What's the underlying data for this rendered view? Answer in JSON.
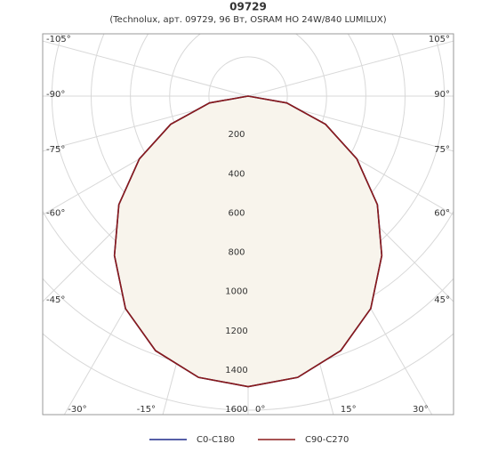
{
  "chart_data": {
    "type": "polar",
    "title": "09729",
    "subtitle": "(Technolux, арт. 09729, 96 Вт, OSRAM HO 24W/840 LUMILUX)",
    "x": [
      -90,
      -80,
      -70,
      -60,
      -50,
      -40,
      -30,
      -20,
      -10,
      0,
      10,
      20,
      30,
      40,
      50,
      60,
      70,
      80,
      90
    ],
    "series": [
      {
        "name": "C0-C180",
        "color": "#1f2a8a",
        "values": [
          0,
          200,
          420,
          640,
          860,
          1060,
          1250,
          1380,
          1455,
          1480,
          1455,
          1380,
          1250,
          1060,
          860,
          640,
          420,
          200,
          0
        ]
      },
      {
        "name": "C90-C270",
        "color": "#8b1a1a",
        "values": [
          0,
          200,
          420,
          640,
          860,
          1060,
          1250,
          1380,
          1455,
          1480,
          1455,
          1380,
          1250,
          1060,
          860,
          640,
          420,
          200,
          0
        ]
      }
    ],
    "fill": "#f8f4ec",
    "rlim": [
      0,
      1600
    ],
    "rticks": [
      200,
      400,
      600,
      800,
      1000,
      1200,
      1400,
      1600
    ],
    "angle_ticks": [
      {
        "value": -105,
        "label": "-105°"
      },
      {
        "value": -90,
        "label": "-90°"
      },
      {
        "value": -75,
        "label": "-75°"
      },
      {
        "value": -60,
        "label": "-60°"
      },
      {
        "value": -45,
        "label": "-45°"
      },
      {
        "value": -30,
        "label": "-30°"
      },
      {
        "value": -15,
        "label": "-15°"
      },
      {
        "value": 0,
        "label": "0°"
      },
      {
        "value": 15,
        "label": "15°"
      },
      {
        "value": 30,
        "label": "30°"
      },
      {
        "value": 45,
        "label": "45°"
      },
      {
        "value": 60,
        "label": "60°"
      },
      {
        "value": 75,
        "label": "75°"
      },
      {
        "value": 90,
        "label": "90°"
      },
      {
        "value": 105,
        "label": "105°"
      }
    ]
  }
}
